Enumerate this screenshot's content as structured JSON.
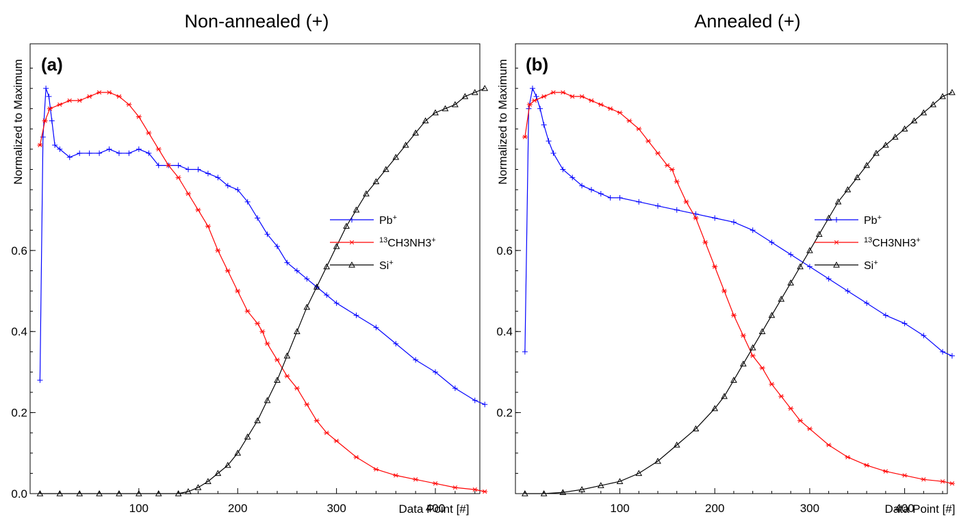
{
  "chart_data": [
    {
      "type": "line",
      "panel_label": "(a)",
      "title": "Non-annealed (+)",
      "xlabel": "Data Point [#]",
      "ylabel": "Normalized to Maximum",
      "xlim": [
        -10,
        445
      ],
      "ylim": [
        0,
        1.11
      ],
      "x_ticks": [
        100,
        200,
        300,
        400
      ],
      "y_ticks": [
        0.0,
        0.2,
        0.4,
        0.6
      ],
      "y_tick_labels": [
        "0.0",
        "0.2",
        "0.4",
        "0.6"
      ],
      "legend": {
        "position": "right-middle"
      },
      "series": [
        {
          "name": "Pb+",
          "label_main": "Pb",
          "label_sup": "+",
          "color": "#0000ff",
          "marker": "plus",
          "x": [
            0,
            3,
            6,
            9,
            12,
            15,
            20,
            30,
            40,
            50,
            60,
            70,
            80,
            90,
            100,
            110,
            120,
            130,
            140,
            150,
            160,
            170,
            180,
            190,
            200,
            210,
            220,
            230,
            240,
            250,
            260,
            270,
            280,
            290,
            300,
            320,
            340,
            360,
            380,
            400,
            420,
            440,
            450
          ],
          "y": [
            0.28,
            0.88,
            1.0,
            0.98,
            0.92,
            0.86,
            0.85,
            0.83,
            0.84,
            0.84,
            0.84,
            0.85,
            0.84,
            0.84,
            0.85,
            0.84,
            0.81,
            0.81,
            0.81,
            0.8,
            0.8,
            0.79,
            0.78,
            0.76,
            0.75,
            0.72,
            0.68,
            0.64,
            0.61,
            0.57,
            0.55,
            0.53,
            0.51,
            0.49,
            0.47,
            0.44,
            0.41,
            0.37,
            0.33,
            0.3,
            0.26,
            0.23,
            0.22
          ]
        },
        {
          "name": "13CH3NH3+",
          "label_pre": "13",
          "label_main": "CH3NH3",
          "label_sup": "+",
          "color": "#ff0000",
          "marker": "asterisk",
          "x": [
            0,
            5,
            10,
            20,
            30,
            40,
            50,
            60,
            70,
            80,
            90,
            100,
            110,
            120,
            130,
            140,
            150,
            160,
            170,
            180,
            190,
            200,
            210,
            220,
            225,
            230,
            240,
            250,
            260,
            270,
            280,
            290,
            300,
            320,
            340,
            360,
            380,
            400,
            420,
            440,
            450
          ],
          "y": [
            0.86,
            0.92,
            0.95,
            0.96,
            0.97,
            0.97,
            0.98,
            0.99,
            0.99,
            0.98,
            0.96,
            0.93,
            0.89,
            0.85,
            0.81,
            0.78,
            0.74,
            0.7,
            0.66,
            0.6,
            0.55,
            0.5,
            0.45,
            0.42,
            0.4,
            0.37,
            0.33,
            0.29,
            0.26,
            0.22,
            0.18,
            0.15,
            0.13,
            0.09,
            0.06,
            0.045,
            0.035,
            0.025,
            0.015,
            0.01,
            0.005
          ]
        },
        {
          "name": "Si+",
          "label_main": "Si",
          "label_sup": "+",
          "color": "#000000",
          "marker": "triangle",
          "x": [
            0,
            20,
            40,
            60,
            80,
            100,
            120,
            140,
            150,
            160,
            170,
            180,
            190,
            200,
            210,
            220,
            230,
            240,
            250,
            260,
            270,
            280,
            290,
            300,
            310,
            320,
            330,
            340,
            350,
            360,
            370,
            380,
            390,
            400,
            410,
            420,
            430,
            440,
            450
          ],
          "y": [
            0.0,
            0.0,
            0.0,
            0.0,
            0.0,
            0.0,
            0.0,
            0.0,
            0.005,
            0.015,
            0.03,
            0.05,
            0.07,
            0.1,
            0.14,
            0.18,
            0.23,
            0.28,
            0.34,
            0.4,
            0.46,
            0.51,
            0.56,
            0.61,
            0.66,
            0.7,
            0.74,
            0.77,
            0.8,
            0.83,
            0.86,
            0.89,
            0.92,
            0.94,
            0.95,
            0.96,
            0.98,
            0.99,
            1.0
          ]
        }
      ]
    },
    {
      "type": "line",
      "panel_label": "(b)",
      "title": "Annealed (+)",
      "xlabel": "Data Point [#]",
      "ylabel": "Normalized to Maximum",
      "xlim": [
        -10,
        445
      ],
      "ylim": [
        0,
        1.11
      ],
      "x_ticks": [
        100,
        200,
        300,
        400
      ],
      "y_ticks": [
        0.2,
        0.4,
        0.6
      ],
      "y_tick_labels": [
        "0.2",
        "0.4",
        "0.6"
      ],
      "legend": {
        "position": "right-middle"
      },
      "series": [
        {
          "name": "Pb+",
          "label_main": "Pb",
          "label_sup": "+",
          "color": "#0000ff",
          "marker": "plus",
          "x": [
            0,
            4,
            8,
            12,
            16,
            20,
            25,
            30,
            40,
            50,
            60,
            70,
            80,
            90,
            100,
            120,
            140,
            160,
            180,
            200,
            220,
            240,
            260,
            280,
            300,
            320,
            340,
            360,
            380,
            400,
            420,
            440,
            450
          ],
          "y": [
            0.35,
            0.95,
            1.0,
            0.98,
            0.95,
            0.91,
            0.87,
            0.84,
            0.8,
            0.78,
            0.76,
            0.75,
            0.74,
            0.73,
            0.73,
            0.72,
            0.71,
            0.7,
            0.69,
            0.68,
            0.67,
            0.65,
            0.62,
            0.59,
            0.56,
            0.53,
            0.5,
            0.47,
            0.44,
            0.42,
            0.39,
            0.35,
            0.34
          ]
        },
        {
          "name": "13CH3NH3+",
          "label_pre": "13",
          "label_main": "CH3NH3",
          "label_sup": "+",
          "color": "#ff0000",
          "marker": "asterisk",
          "x": [
            0,
            5,
            10,
            20,
            30,
            40,
            50,
            60,
            70,
            80,
            90,
            100,
            110,
            120,
            130,
            140,
            150,
            155,
            160,
            170,
            180,
            190,
            200,
            210,
            220,
            230,
            240,
            250,
            260,
            270,
            280,
            290,
            300,
            320,
            340,
            360,
            380,
            400,
            420,
            440,
            450
          ],
          "y": [
            0.88,
            0.96,
            0.97,
            0.98,
            0.99,
            0.99,
            0.98,
            0.98,
            0.97,
            0.96,
            0.95,
            0.94,
            0.92,
            0.9,
            0.87,
            0.84,
            0.81,
            0.8,
            0.77,
            0.72,
            0.68,
            0.62,
            0.56,
            0.5,
            0.44,
            0.39,
            0.34,
            0.31,
            0.27,
            0.24,
            0.21,
            0.18,
            0.16,
            0.12,
            0.09,
            0.07,
            0.055,
            0.045,
            0.035,
            0.03,
            0.025
          ]
        },
        {
          "name": "Si+",
          "label_main": "Si",
          "label_sup": "+",
          "color": "#000000",
          "marker": "triangle",
          "x": [
            0,
            20,
            40,
            60,
            80,
            100,
            120,
            140,
            160,
            180,
            200,
            210,
            220,
            230,
            240,
            250,
            260,
            270,
            280,
            290,
            300,
            310,
            320,
            330,
            340,
            350,
            360,
            370,
            380,
            390,
            400,
            410,
            420,
            430,
            440,
            450
          ],
          "y": [
            0.0,
            0.0,
            0.003,
            0.01,
            0.02,
            0.03,
            0.05,
            0.08,
            0.12,
            0.16,
            0.21,
            0.24,
            0.28,
            0.32,
            0.36,
            0.4,
            0.44,
            0.48,
            0.52,
            0.56,
            0.6,
            0.64,
            0.68,
            0.72,
            0.75,
            0.78,
            0.81,
            0.84,
            0.86,
            0.88,
            0.9,
            0.92,
            0.94,
            0.96,
            0.98,
            0.99
          ]
        }
      ]
    }
  ]
}
